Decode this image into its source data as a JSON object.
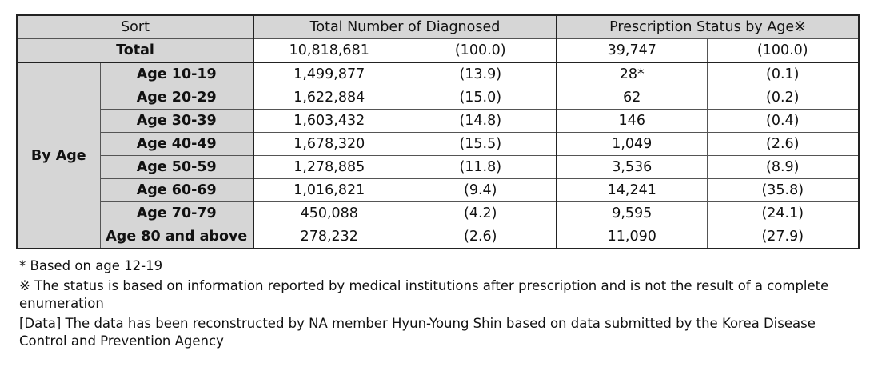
{
  "table": {
    "headers": {
      "sort": "Sort",
      "total_diagnosed": "Total Number of Diagnosed",
      "prescription_status": "Prescription Status by Age※"
    },
    "total_row": {
      "label": "Total",
      "diagnosed": "10,818,681",
      "diagnosed_pct": "(100.0)",
      "prescribed": "39,747",
      "prescribed_pct": "(100.0)"
    },
    "group_label": "By Age",
    "rows": [
      {
        "age": "Age 10-19",
        "diagnosed": "1,499,877",
        "diagnosed_pct": "(13.9)",
        "prescribed": "28*",
        "prescribed_pct": "(0.1)"
      },
      {
        "age": "Age 20-29",
        "diagnosed": "1,622,884",
        "diagnosed_pct": "(15.0)",
        "prescribed": "62",
        "prescribed_pct": "(0.2)"
      },
      {
        "age": "Age 30-39",
        "diagnosed": "1,603,432",
        "diagnosed_pct": "(14.8)",
        "prescribed": "146",
        "prescribed_pct": "(0.4)"
      },
      {
        "age": "Age 40-49",
        "diagnosed": "1,678,320",
        "diagnosed_pct": "(15.5)",
        "prescribed": "1,049",
        "prescribed_pct": "(2.6)"
      },
      {
        "age": "Age 50-59",
        "diagnosed": "1,278,885",
        "diagnosed_pct": "(11.8)",
        "prescribed": "3,536",
        "prescribed_pct": "(8.9)"
      },
      {
        "age": "Age 60-69",
        "diagnosed": "1,016,821",
        "diagnosed_pct": "(9.4)",
        "prescribed": "14,241",
        "prescribed_pct": "(35.8)"
      },
      {
        "age": "Age 70-79",
        "diagnosed": "450,088",
        "diagnosed_pct": "(4.2)",
        "prescribed": "9,595",
        "prescribed_pct": "(24.1)"
      },
      {
        "age": "Age 80 and above",
        "diagnosed": "278,232",
        "diagnosed_pct": "(2.6)",
        "prescribed": "11,090",
        "prescribed_pct": "(27.9)"
      }
    ]
  },
  "notes": {
    "asterisk": "* Based on age 12-19",
    "reference_mark": "※ The status is based on information reported by medical institutions after prescription and is not the result of a complete enumeration",
    "data_source": "[Data] The data has been reconstructed by NA member Hyun-Young Shin based on data submitted by the Korea Disease Control and Prevention Agency"
  },
  "colors": {
    "header_bg": "#d6d6d6",
    "border": "#555555"
  }
}
